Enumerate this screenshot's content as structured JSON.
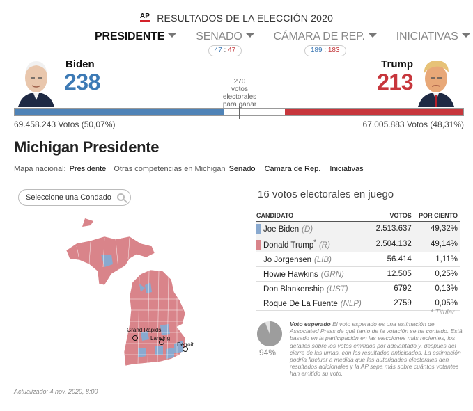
{
  "header": {
    "ap_logo": "AP",
    "title": "RESULTADOS DE LA ELECCIÓN 2020"
  },
  "nav": [
    {
      "label": "PRESIDENTE",
      "active": true
    },
    {
      "label": "SENADO",
      "pill_d": "47",
      "pill_sep": ":",
      "pill_r": "47"
    },
    {
      "label": "CÁMARA DE REP.",
      "pill_d": "189",
      "pill_sep": ":",
      "pill_r": "183"
    },
    {
      "label": "INICIATIVAS"
    }
  ],
  "candidates": {
    "dem": {
      "name": "Biden",
      "ev": "238",
      "votes": "69.458.243 Votos (50,07%)"
    },
    "rep": {
      "name": "Trump",
      "ev": "213",
      "votes": "67.005.883 Votos (48,31%)"
    },
    "needed": [
      "270",
      "votos",
      "electorales",
      "para ganar"
    ],
    "dem_share": 0.4659,
    "rep_share": 0.3977
  },
  "state": {
    "title": "Michigan Presidente",
    "national_label": "Mapa nacional:",
    "national_link": "Presidente",
    "other_label": "Otras competencias en Michigan",
    "links": [
      "Senado",
      "Cámara de Rep.",
      "Iniciativas"
    ],
    "county_placeholder": "Seleccione una Condado"
  },
  "results": {
    "ev_at_stake": "16 votos electorales en juego",
    "headers": {
      "candidate": "CANDIDATO",
      "votes": "VOTOS",
      "pct": "POR CIENTO"
    },
    "rows": [
      {
        "name": "Joe Biden",
        "party": "(D)",
        "votes": "2.513.637",
        "pct": "49,32%",
        "color": "#89a9cf"
      },
      {
        "name": "Donald Trump",
        "star": "*",
        "party": "(R)",
        "votes": "2.504.132",
        "pct": "49,14%",
        "color": "#d9848a"
      },
      {
        "name": "Jo Jorgensen",
        "party": "(LIB)",
        "votes": "56.414",
        "pct": "1,11%"
      },
      {
        "name": "Howie Hawkins",
        "party": "(GRN)",
        "votes": "12.505",
        "pct": "0,25%"
      },
      {
        "name": "Don Blankenship",
        "party": "(UST)",
        "votes": "6792",
        "pct": "0,13%"
      },
      {
        "name": "Roque De La Fuente",
        "party": "(NLP)",
        "votes": "2759",
        "pct": "0,05%"
      }
    ],
    "footnote": "* Titular"
  },
  "expected": {
    "pct": "94%",
    "pct_value": 0.94,
    "title": "Voto esperado",
    "text": " El voto esperado es una estimación de Associated Press de qué tanto de la votación se ha contado. Está basado en la participación en las elecciones más recientes, los detalles sobre los votos emitidos por adelantado y, después del cierre de las urnas, con los resultados anticipados. La estimación podría fluctuar a medida que las autoridades electorales den resultados adicionales y la AP sepa más sobre cuántos votantes han emitido su voto."
  },
  "map": {
    "cities": [
      "Grand Rapids",
      "Lansing",
      "Detroit"
    ],
    "colors": {
      "rep": "#d9848a",
      "dem": "#89a9cf",
      "border": "#ffffff"
    }
  },
  "updated": "Actualizado: 4 nov. 2020, 8:00"
}
